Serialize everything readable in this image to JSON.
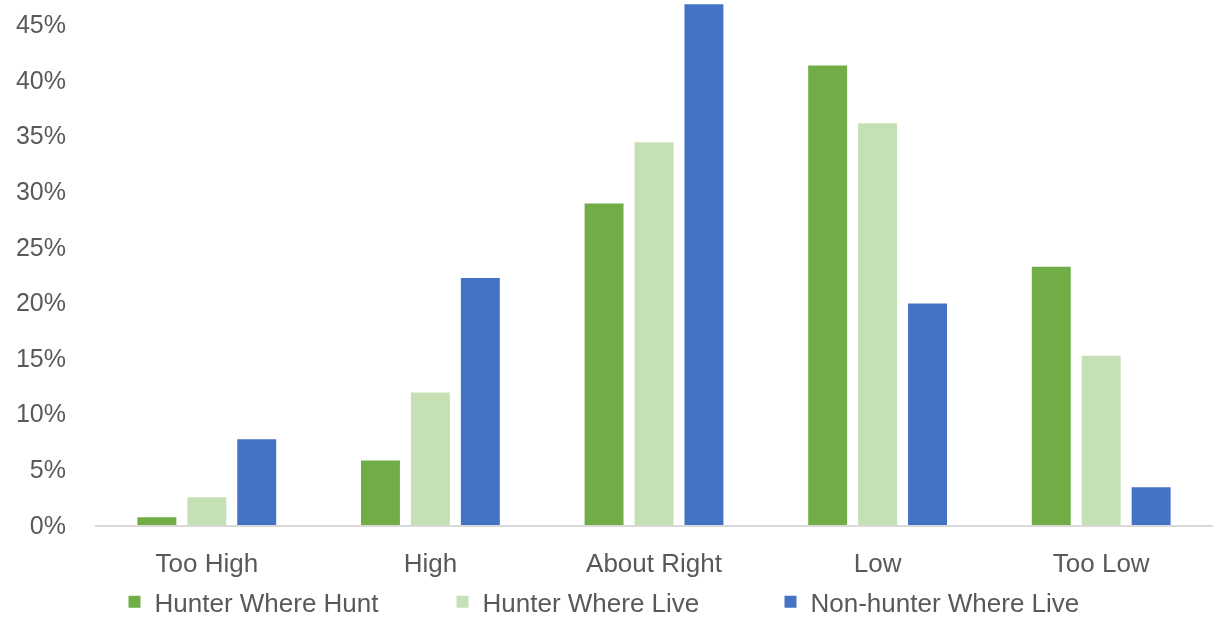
{
  "chart_data": {
    "type": "bar",
    "categories": [
      "Too High",
      "High",
      "About Right",
      "Low",
      "Too Low"
    ],
    "series": [
      {
        "name": "Hunter Where Hunt",
        "color": "#70ad47",
        "values": [
          0.7,
          5.8,
          28.9,
          41.3,
          23.2
        ]
      },
      {
        "name": "Hunter Where Live",
        "color": "#c5e0b4",
        "values": [
          2.5,
          11.9,
          34.4,
          36.1,
          15.2
        ]
      },
      {
        "name": "Non-hunter Where Live",
        "color": "#4472c4",
        "values": [
          7.7,
          22.2,
          46.8,
          19.9,
          3.4
        ]
      }
    ],
    "ylim": [
      0,
      47
    ],
    "yticks": [
      {
        "value": 0,
        "label": "0%"
      },
      {
        "value": 5,
        "label": "5%"
      },
      {
        "value": 10,
        "label": "10%"
      },
      {
        "value": 15,
        "label": "15%"
      },
      {
        "value": 20,
        "label": "20%"
      },
      {
        "value": 25,
        "label": "25%"
      },
      {
        "value": 30,
        "label": "30%"
      },
      {
        "value": 35,
        "label": "35%"
      },
      {
        "value": 40,
        "label": "40%"
      },
      {
        "value": 45,
        "label": "45%"
      }
    ],
    "grid": false,
    "legend": "bottom"
  }
}
